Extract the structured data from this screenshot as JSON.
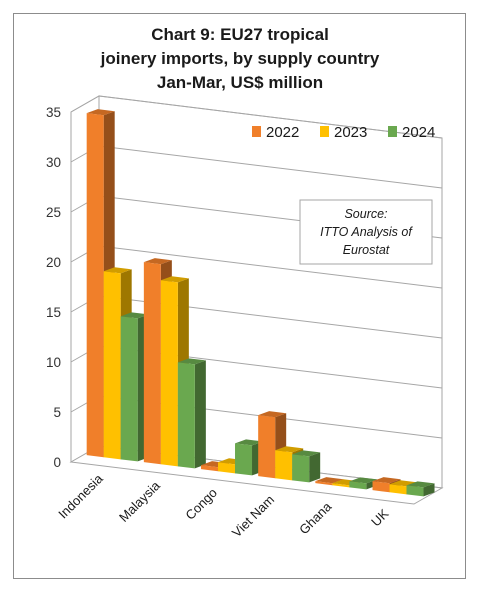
{
  "chart_data": {
    "type": "bar",
    "title_lines": [
      "Chart 9: EU27 tropical",
      "joinery imports, by supply country",
      "Jan-Mar, US$ million"
    ],
    "categories": [
      "Indonesia",
      "Malaysia",
      "Congo",
      "Viet Nam",
      "Ghana",
      "UK"
    ],
    "series": [
      {
        "name": "2022",
        "color": "#f07f2a",
        "values": [
          34.2,
          20.0,
          0.4,
          6.1,
          0.2,
          0.9
        ]
      },
      {
        "name": "2023",
        "color": "#ffc000",
        "values": [
          18.6,
          18.4,
          0.9,
          2.8,
          0.2,
          0.8
        ]
      },
      {
        "name": "2024",
        "color": "#6aa84f",
        "values": [
          14.3,
          10.4,
          3.0,
          2.6,
          0.6,
          0.9
        ]
      }
    ],
    "yticks": [
      0,
      5,
      10,
      15,
      20,
      25,
      30,
      35
    ],
    "ylim": [
      0,
      35
    ],
    "grid": true,
    "legend_position": "top-right",
    "annotation_lines": [
      "Source:",
      "ITTO Analysis of",
      "Eurostat"
    ]
  }
}
